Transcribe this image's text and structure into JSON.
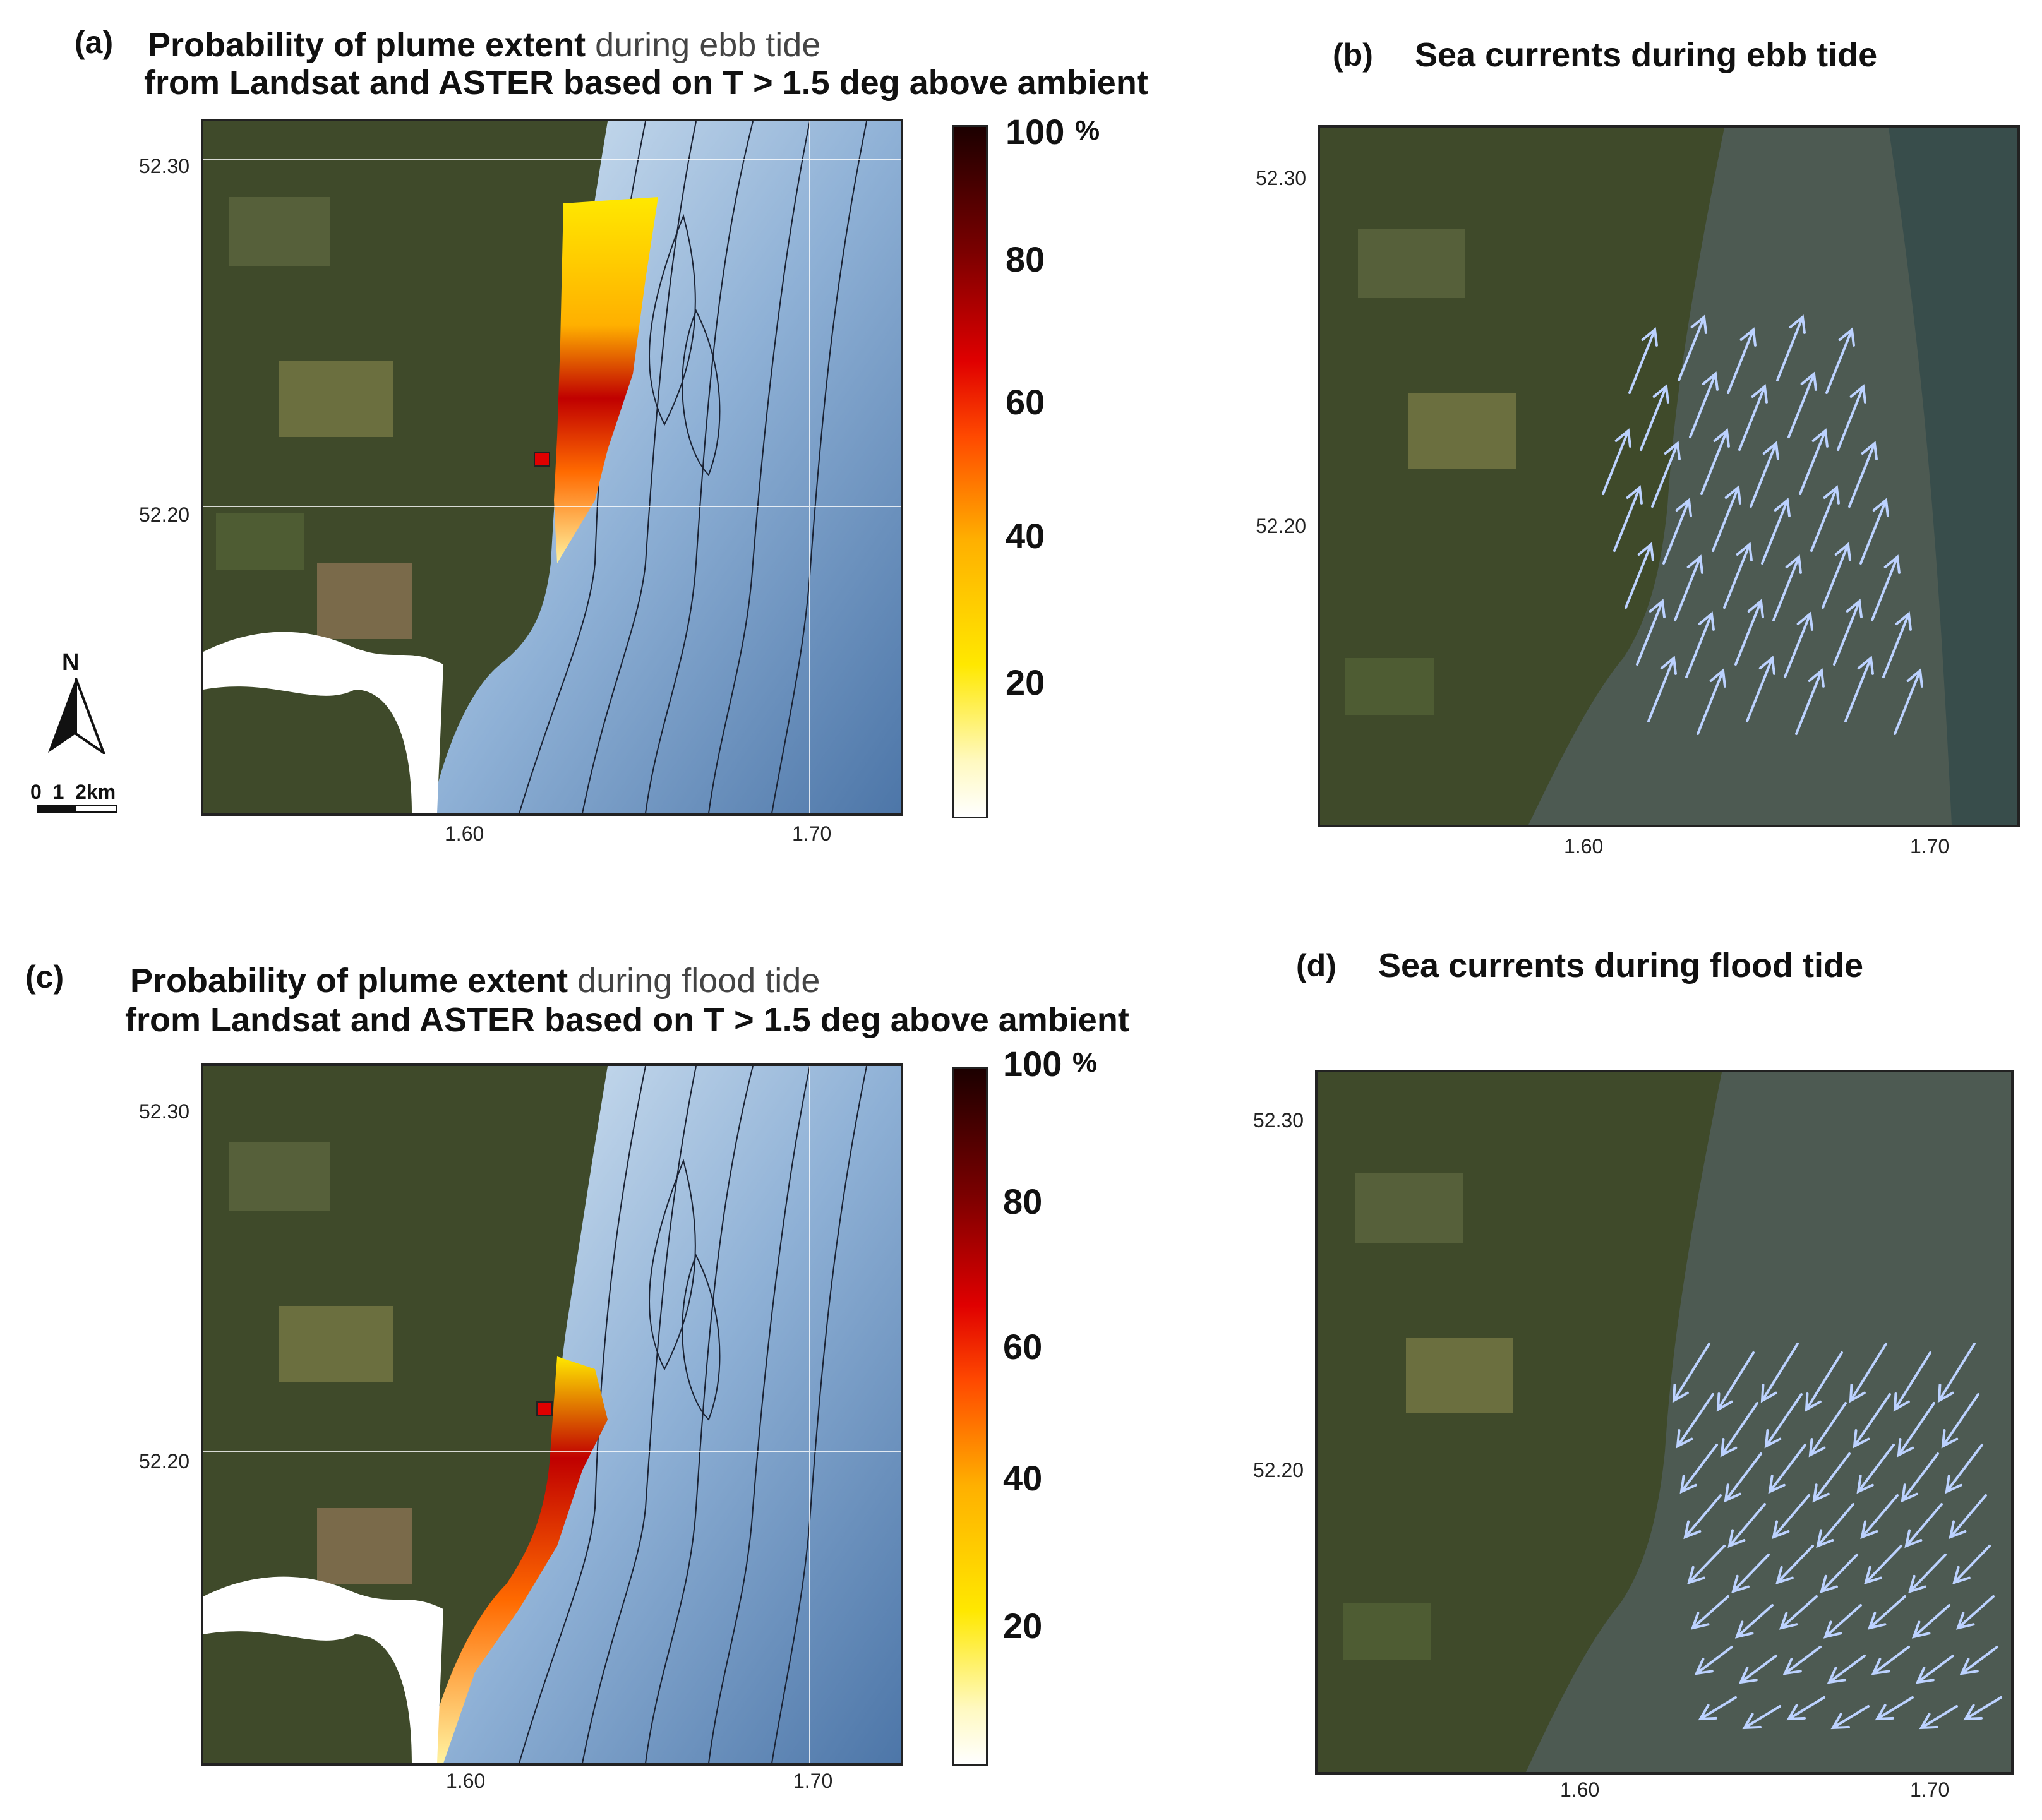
{
  "panels": {
    "a": {
      "letter": "(a)",
      "title_line1_start": "Probability of plume extent ",
      "title_line1_end": "during ebb tide",
      "title_line2": "from Landsat and ASTER based on T  > 1.5 deg above ambient"
    },
    "b": {
      "letter": "(b)",
      "title": "Sea currents during ebb tide"
    },
    "c": {
      "letter": "(c)",
      "title_line1_start": "Probability of plume extent ",
      "title_line1_end": "during flood tide",
      "title_line2": "from Landsat and ASTER based on T  > 1.5 deg above ambient"
    },
    "d": {
      "letter": "(d)",
      "title": "Sea currents during flood tide"
    }
  },
  "axes": {
    "lat_top": "52.30",
    "lat_bottom": "52.20",
    "lon_left": "1.60",
    "lon_right": "1.70"
  },
  "colorbar": {
    "labels": [
      "100",
      "80",
      "60",
      "40",
      "20"
    ],
    "unit": "%",
    "colors": [
      "#ffffff",
      "#ffe800",
      "#ffb000",
      "#ff4a00",
      "#e00000",
      "#7a0000",
      "#1c0000"
    ]
  },
  "north_arrow": {
    "label": "N",
    "icon": "north-arrow-icon"
  },
  "scale_bar": {
    "label": "0  1  2km"
  },
  "colors": {
    "land": "#3f4a2a",
    "sea_light": "#c9def0",
    "sea_dark": "#4d76a8",
    "sea_photo": "#4d5a52",
    "arrow": "#bcd2ff",
    "site_marker": "#e00000"
  }
}
